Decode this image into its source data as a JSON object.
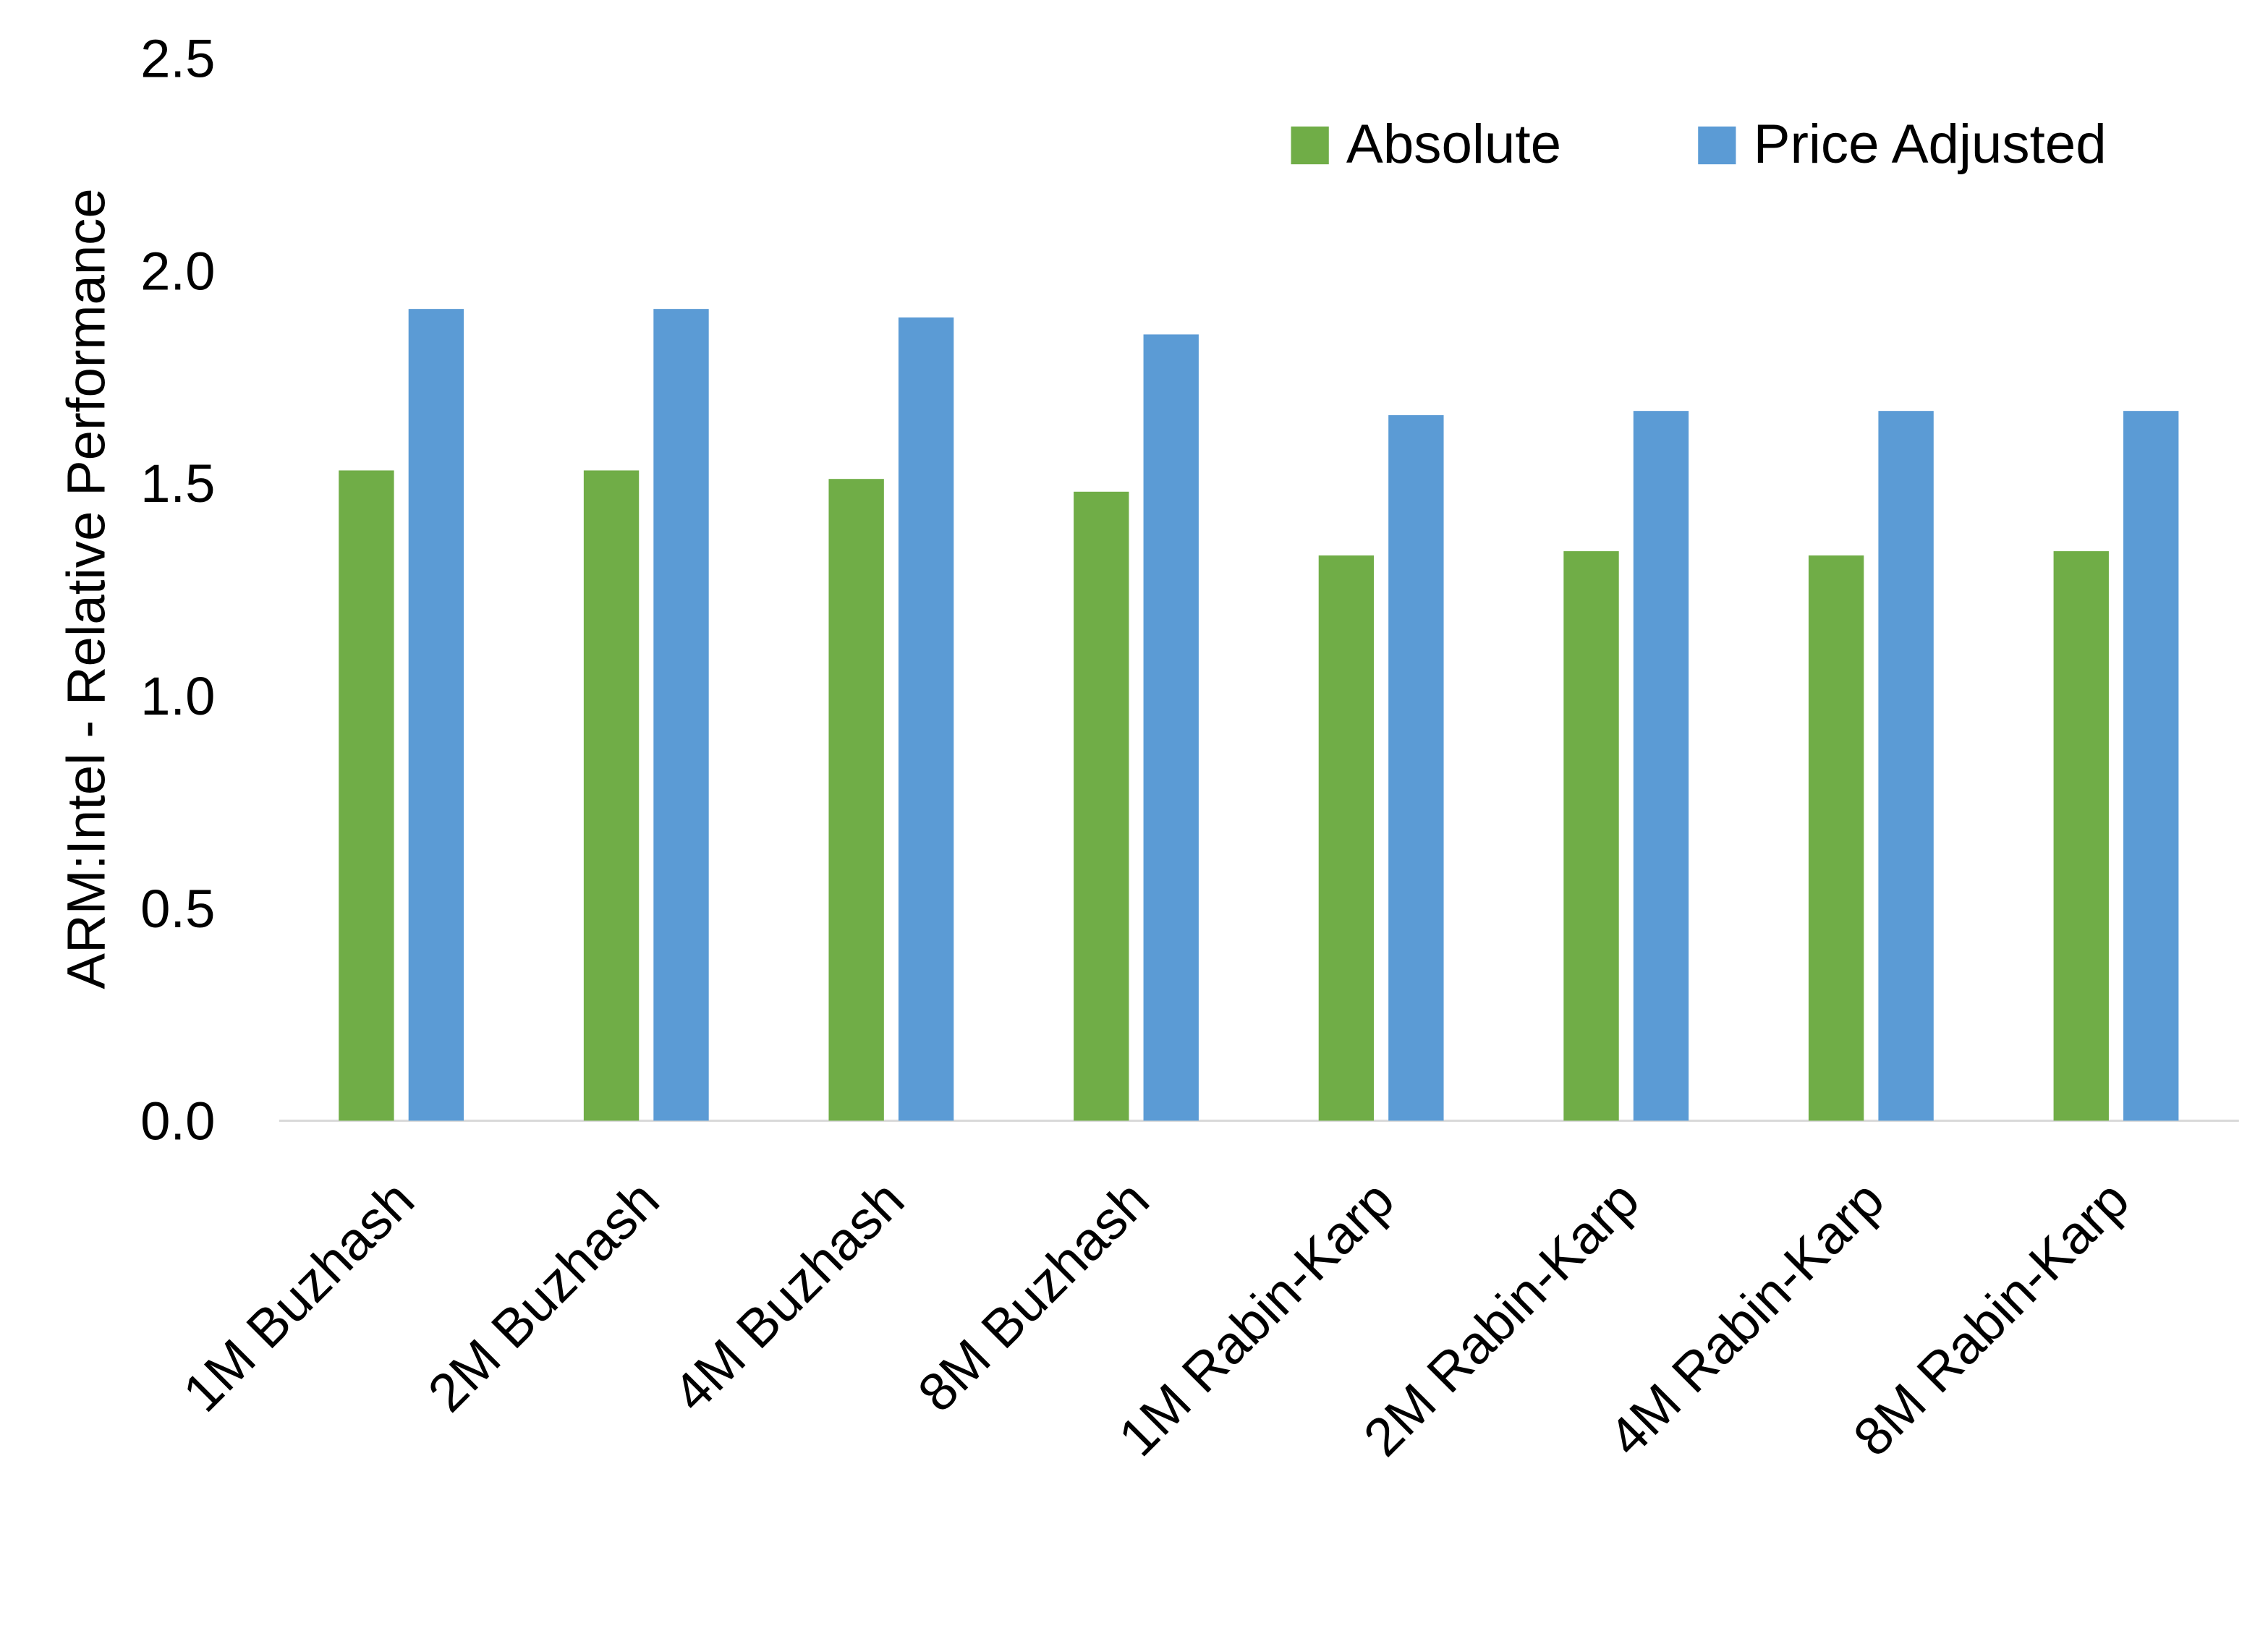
{
  "chart_data": {
    "type": "bar",
    "title": "",
    "xlabel": "",
    "ylabel": "ARM:Intel - Relative Performance",
    "ylim": [
      0,
      2.5
    ],
    "yticks": [
      "0.0",
      "0.5",
      "1.0",
      "1.5",
      "2.0",
      "2.5"
    ],
    "grid": false,
    "legend_position": "top-right",
    "categories": [
      "1M Buzhash",
      "2M Buzhash",
      "4M Buzhash",
      "8M Buzhash",
      "1M Rabin-Karp",
      "2M Rabin-Karp",
      "4M Rabin-Karp",
      "8M Rabin-Karp"
    ],
    "series": [
      {
        "name": "Absolute",
        "color": "#70AD47",
        "values": [
          1.53,
          1.53,
          1.51,
          1.48,
          1.33,
          1.34,
          1.33,
          1.34
        ]
      },
      {
        "name": "Price Adjusted",
        "color": "#5B9BD5",
        "values": [
          1.91,
          1.91,
          1.89,
          1.85,
          1.66,
          1.67,
          1.67,
          1.67
        ]
      }
    ]
  }
}
